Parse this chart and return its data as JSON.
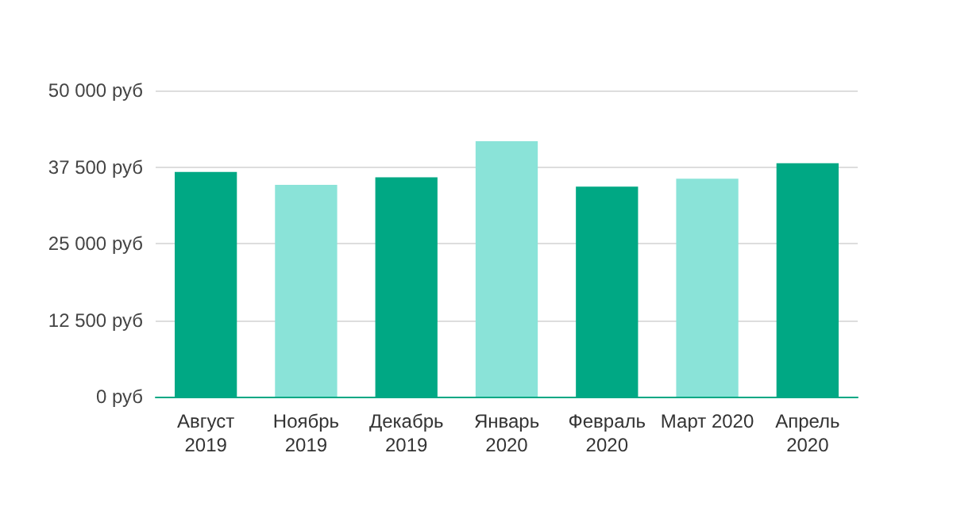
{
  "chart_data": {
    "type": "bar",
    "categories": [
      "Август 2019",
      "Ноябрь 2019",
      "Декабрь 2019",
      "Январь 2020",
      "Февраль 2020",
      "Март 2020",
      "Апрель 2020"
    ],
    "values": [
      36700,
      34600,
      35800,
      41700,
      34300,
      35600,
      38100
    ],
    "colors": [
      "#00a884",
      "#8ae3d8",
      "#00a884",
      "#8ae3d8",
      "#00a884",
      "#8ae3d8",
      "#00a884"
    ],
    "ylim": [
      0,
      50000
    ],
    "yticks": [
      {
        "value": 0,
        "label": "0 руб"
      },
      {
        "value": 12500,
        "label": "12 500 руб"
      },
      {
        "value": 25000,
        "label": "25 000 руб"
      },
      {
        "value": 37500,
        "label": "37 500 руб"
      },
      {
        "value": 50000,
        "label": "50 000 руб"
      }
    ],
    "grid": "y"
  }
}
